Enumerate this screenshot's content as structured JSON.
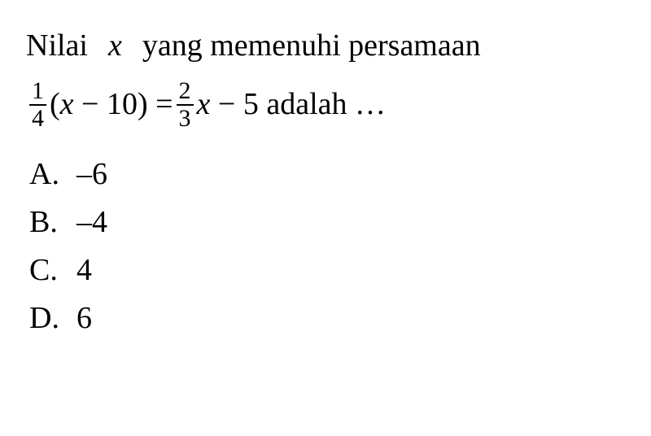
{
  "question": {
    "line1": "Nilai",
    "variable": "x",
    "line1_cont": "yang memenuhi persamaan",
    "frac1_num": "1",
    "frac1_den": "4",
    "eq_part1_open": "(",
    "eq_var1": "x",
    "eq_part1_rest": " − 10) = ",
    "frac2_num": "2",
    "frac2_den": "3",
    "eq_var2": "x",
    "eq_part2_rest": " − 5 adalah …"
  },
  "options": {
    "a_letter": "A.",
    "a_value": "–6",
    "b_letter": "B.",
    "b_value": "–4",
    "c_letter": "C.",
    "c_value": "4",
    "d_letter": "D.",
    "d_value": "6"
  },
  "style": {
    "text_color": "#000000",
    "background_color": "#ffffff",
    "main_fontsize": 38,
    "fraction_fontsize": 30,
    "font_family": "Times New Roman"
  }
}
